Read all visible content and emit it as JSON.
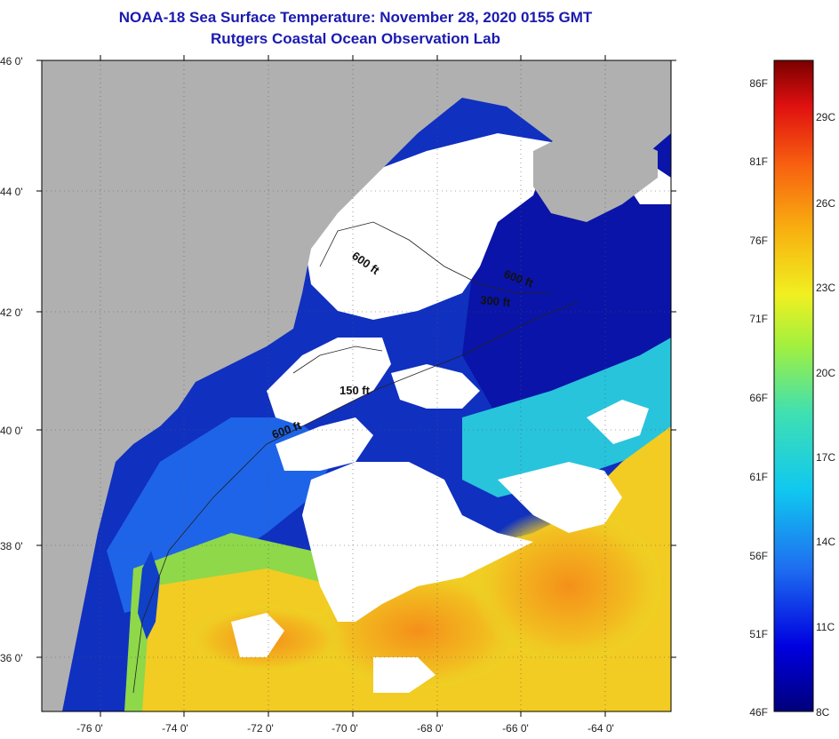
{
  "header": {
    "title": "NOAA-18 Sea Surface Temperature:  November 28, 2020 0155 GMT",
    "subtitle": "Rutgers Coastal Ocean Observation Lab"
  },
  "map": {
    "lat_labels": [
      "46 0'",
      "44 0'",
      "42 0'",
      "40 0'",
      "38 0'",
      "36 0'"
    ],
    "lon_labels": [
      "-76 0'",
      "-74 0'",
      "-72 0'",
      "-70 0'",
      "-68 0'",
      "-66 0'",
      "-64 0'"
    ],
    "contours": [
      {
        "label": "600 ft"
      },
      {
        "label": "600 ft"
      },
      {
        "label": "300 ft"
      },
      {
        "label": "150 ft"
      },
      {
        "label": "600 ft"
      }
    ],
    "colors": {
      "land": "#b0b0b0",
      "cloud": "#ffffff",
      "deep_blue": "#0a1aa8",
      "blue": "#1e5ae6",
      "cyan": "#22c8e0",
      "yellow": "#f2d21e",
      "orange": "#f4a21a"
    }
  },
  "colorbar": {
    "fahrenheit": [
      "86F",
      "81F",
      "76F",
      "71F",
      "66F",
      "61F",
      "56F",
      "51F",
      "46F"
    ],
    "celsius": [
      "29C",
      "26C",
      "23C",
      "20C",
      "17C",
      "14C",
      "11C",
      "8C"
    ]
  }
}
